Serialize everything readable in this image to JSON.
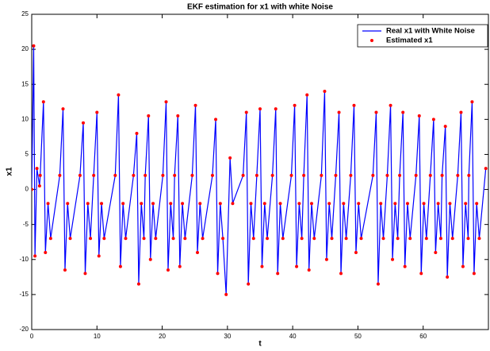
{
  "chart_data": {
    "type": "line",
    "title": "EKF estimation for x1 with white Noise",
    "x_label": "t",
    "y_label": "x1",
    "x": [
      0,
      0.3,
      0.5,
      0.8,
      1.2,
      1.3,
      1.8,
      2.1,
      2.5,
      2.9,
      4.3,
      4.8,
      5.1,
      5.5,
      5.9,
      7.4,
      7.9,
      8.2,
      8.6,
      9.0,
      9.5,
      10.0,
      10.3,
      10.7,
      11.1,
      12.8,
      13.3,
      13.6,
      14.0,
      14.4,
      15.6,
      16.1,
      16.4,
      16.8,
      17.2,
      17.4,
      17.9,
      18.2,
      18.6,
      19.0,
      20.1,
      20.6,
      20.9,
      21.3,
      21.7,
      21.9,
      22.4,
      22.7,
      23.1,
      23.5,
      24.6,
      25.1,
      25.4,
      25.8,
      26.2,
      27.7,
      28.2,
      28.5,
      28.9,
      29.3,
      29.8,
      30.4,
      30.8,
      32.4,
      32.9,
      33.2,
      33.6,
      34.0,
      34.5,
      35.0,
      35.3,
      35.7,
      36.1,
      36.9,
      37.4,
      37.7,
      38.1,
      38.5,
      39.8,
      40.3,
      40.6,
      41.0,
      41.4,
      41.7,
      42.2,
      42.5,
      42.9,
      43.3,
      44.4,
      44.9,
      45.2,
      45.6,
      46.0,
      46.6,
      47.1,
      47.4,
      47.8,
      48.2,
      48.9,
      49.4,
      49.7,
      50.1,
      50.5,
      52.3,
      52.8,
      53.1,
      53.5,
      53.9,
      54.5,
      55.0,
      55.3,
      55.7,
      56.1,
      56.4,
      56.9,
      57.2,
      57.6,
      58.0,
      58.9,
      59.4,
      59.7,
      60.1,
      60.5,
      61.1,
      61.6,
      61.9,
      62.3,
      62.7,
      62.9,
      63.4,
      63.7,
      64.1,
      64.5,
      65.3,
      65.8,
      66.1,
      66.5,
      66.9,
      67.0,
      67.5,
      67.8,
      68.2,
      68.6,
      69.6
    ],
    "series": [
      {
        "name": "Real x1 with White Noise",
        "color": "#0000ff",
        "style": "line",
        "values": [
          0,
          20.5,
          -9.5,
          3,
          0.5,
          2,
          12.5,
          -9,
          -2,
          -7,
          2,
          11.5,
          -11.5,
          -2,
          -7,
          2,
          9.5,
          -12,
          -2,
          -7,
          2,
          11,
          -9.5,
          -2,
          -7,
          2,
          13.5,
          -11,
          -2,
          -7,
          2,
          8,
          -13.5,
          -2,
          -7,
          2,
          10.5,
          -10,
          -2,
          -7,
          2,
          12.5,
          -11.5,
          -2,
          -7,
          2,
          10.5,
          -11,
          -2,
          -7,
          2,
          12,
          -9,
          -2,
          -7,
          2,
          10,
          -12,
          -2,
          -7,
          -15,
          4.5,
          -2,
          2,
          11,
          -13.5,
          -2,
          -7,
          2,
          11.5,
          -11,
          -2,
          -7,
          2,
          11.5,
          -12,
          -2,
          -7,
          2,
          12,
          -11,
          -2,
          -7,
          2,
          13.5,
          -11.5,
          -2,
          -7,
          2,
          14,
          -10,
          -2,
          -7,
          2,
          11,
          -12,
          -2,
          -7,
          2,
          12,
          -9,
          -2,
          -7,
          2,
          11,
          -13.5,
          -2,
          -7,
          2,
          12,
          -10,
          -2,
          -7,
          2,
          11,
          -11,
          -2,
          -7,
          2,
          10.5,
          -12,
          -2,
          -7,
          2,
          10,
          -9,
          -2,
          -7,
          2,
          9,
          -12.5,
          -2,
          -7,
          2,
          11,
          -11,
          -2,
          -7,
          2,
          12.5,
          -12,
          -2,
          -7,
          3
        ]
      },
      {
        "name": "Estimated x1",
        "color": "#ff0000",
        "style": "dots",
        "values": [
          0,
          20.5,
          -9.5,
          3,
          0.5,
          2,
          12.5,
          -9,
          -2,
          -7,
          2,
          11.5,
          -11.5,
          -2,
          -7,
          2,
          9.5,
          -12,
          -2,
          -7,
          2,
          11,
          -9.5,
          -2,
          -7,
          2,
          13.5,
          -11,
          -2,
          -7,
          2,
          8,
          -13.5,
          -2,
          -7,
          2,
          10.5,
          -10,
          -2,
          -7,
          2,
          12.5,
          -11.5,
          -2,
          -7,
          2,
          10.5,
          -11,
          -2,
          -7,
          2,
          12,
          -9,
          -2,
          -7,
          2,
          10,
          -12,
          -2,
          -7,
          -15,
          4.5,
          -2,
          2,
          11,
          -13.5,
          -2,
          -7,
          2,
          11.5,
          -11,
          -2,
          -7,
          2,
          11.5,
          -12,
          -2,
          -7,
          2,
          12,
          -11,
          -2,
          -7,
          2,
          13.5,
          -11.5,
          -2,
          -7,
          2,
          14,
          -10,
          -2,
          -7,
          2,
          11,
          -12,
          -2,
          -7,
          2,
          12,
          -9,
          -2,
          -7,
          2,
          11,
          -13.5,
          -2,
          -7,
          2,
          12,
          -10,
          -2,
          -7,
          2,
          11,
          -11,
          -2,
          -7,
          2,
          10.5,
          -12,
          -2,
          -7,
          2,
          10,
          -9,
          -2,
          -7,
          2,
          9,
          -12.5,
          -2,
          -7,
          2,
          11,
          -11,
          -2,
          -7,
          2,
          12.5,
          -12,
          -2,
          -7,
          3
        ]
      }
    ],
    "xlim": [
      0,
      70
    ],
    "xticks": [
      0,
      10,
      20,
      30,
      40,
      50,
      60
    ],
    "ylim": [
      -20,
      25
    ],
    "yticks": [
      -20,
      -15,
      -10,
      -5,
      0,
      5,
      10,
      15,
      20,
      25
    ],
    "grid": false,
    "legend": "top-right"
  }
}
